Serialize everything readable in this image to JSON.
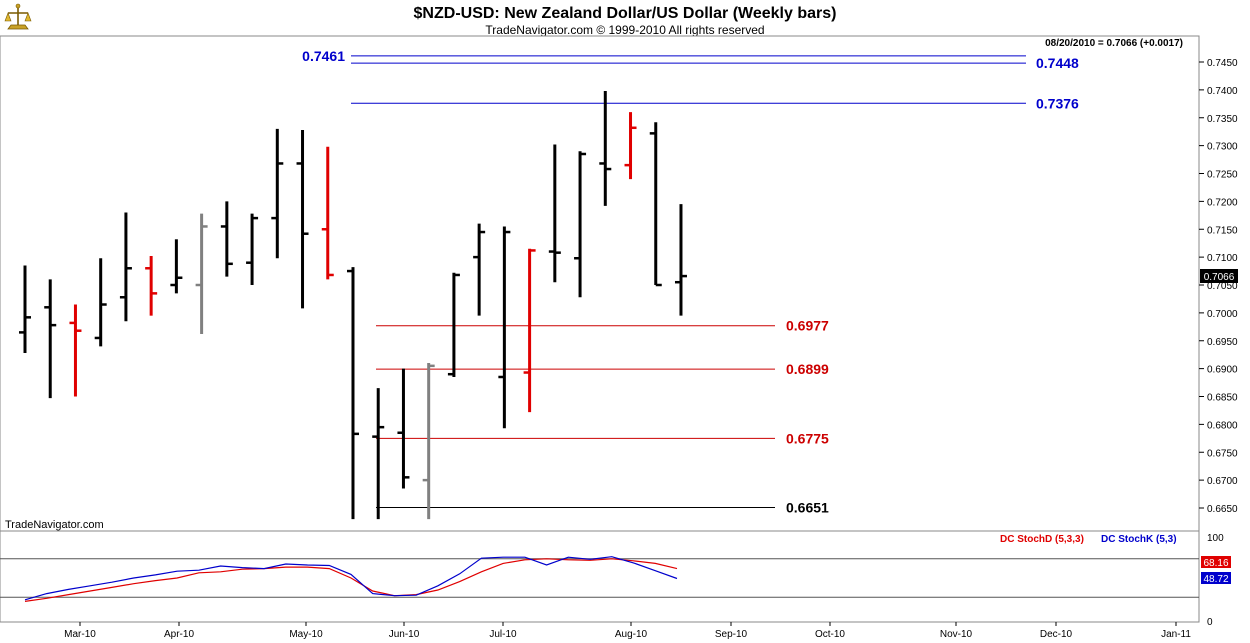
{
  "header": {
    "title": "$NZD-USD:  New Zealand Dollar/US Dollar  (Weekly bars)",
    "copyright": "TradeNavigator.com © 1999-2010 All rights reserved",
    "last_quote": "08/20/2010 = 0.7066 (+0.0017)",
    "watermark": "TradeNavigator.com"
  },
  "colors": {
    "up_bar": "#000000",
    "down_bar": "#e00000",
    "neutral_bar": "#808080",
    "resistance": "#0000cc",
    "support": "#cc0000",
    "stoch_d": "#e00000",
    "stoch_k": "#0000cc"
  },
  "chart_data": [
    {
      "type": "ohlc",
      "title": "$NZD-USD:  New Zealand Dollar/US Dollar  (Weekly bars)",
      "x_ticks": [
        "Mar-10",
        "Apr-10",
        "May-10",
        "Jun-10",
        "Jul-10",
        "Aug-10",
        "Sep-10",
        "Oct-10",
        "Nov-10",
        "Dec-10",
        "Jan-11"
      ],
      "y_ticks": [
        "0.7450",
        "0.7400",
        "0.7350",
        "0.7300",
        "0.7250",
        "0.7200",
        "0.7150",
        "0.7100",
        "0.7050",
        "0.7000",
        "0.6950",
        "0.6900",
        "0.6850",
        "0.6800",
        "0.6750",
        "0.6700",
        "0.6650"
      ],
      "ylim": [
        0.6628,
        0.7495
      ],
      "grid": false,
      "last_value": "0.7066",
      "bars": [
        {
          "o": 0.6965,
          "h": 0.7085,
          "l": 0.6928,
          "c": 0.6992,
          "color": "up"
        },
        {
          "o": 0.701,
          "h": 0.706,
          "l": 0.6847,
          "c": 0.6978,
          "color": "up"
        },
        {
          "o": 0.6982,
          "h": 0.7015,
          "l": 0.685,
          "c": 0.6968,
          "color": "down"
        },
        {
          "o": 0.6955,
          "h": 0.7098,
          "l": 0.694,
          "c": 0.7015,
          "color": "up"
        },
        {
          "o": 0.7028,
          "h": 0.718,
          "l": 0.6985,
          "c": 0.708,
          "color": "up"
        },
        {
          "o": 0.708,
          "h": 0.7102,
          "l": 0.6995,
          "c": 0.7035,
          "color": "down"
        },
        {
          "o": 0.705,
          "h": 0.7132,
          "l": 0.7035,
          "c": 0.7063,
          "color": "up"
        },
        {
          "o": 0.705,
          "h": 0.7178,
          "l": 0.6962,
          "c": 0.7155,
          "color": "neutral"
        },
        {
          "o": 0.7155,
          "h": 0.72,
          "l": 0.7065,
          "c": 0.7088,
          "color": "up"
        },
        {
          "o": 0.709,
          "h": 0.7178,
          "l": 0.705,
          "c": 0.717,
          "color": "up"
        },
        {
          "o": 0.717,
          "h": 0.733,
          "l": 0.7098,
          "c": 0.7268,
          "color": "up"
        },
        {
          "o": 0.7268,
          "h": 0.7328,
          "l": 0.7008,
          "c": 0.7142,
          "color": "up"
        },
        {
          "o": 0.715,
          "h": 0.7298,
          "l": 0.706,
          "c": 0.7068,
          "color": "down"
        },
        {
          "o": 0.7075,
          "h": 0.7082,
          "l": 0.663,
          "c": 0.6783,
          "color": "up"
        },
        {
          "o": 0.6778,
          "h": 0.6865,
          "l": 0.663,
          "c": 0.6795,
          "color": "up"
        },
        {
          "o": 0.6785,
          "h": 0.69,
          "l": 0.6685,
          "c": 0.6705,
          "color": "up"
        },
        {
          "o": 0.67,
          "h": 0.691,
          "l": 0.663,
          "c": 0.6905,
          "color": "neutral"
        },
        {
          "o": 0.689,
          "h": 0.7072,
          "l": 0.6885,
          "c": 0.7068,
          "color": "up"
        },
        {
          "o": 0.71,
          "h": 0.716,
          "l": 0.6995,
          "c": 0.7145,
          "color": "up"
        },
        {
          "o": 0.6885,
          "h": 0.7155,
          "l": 0.6793,
          "c": 0.7145,
          "color": "up"
        },
        {
          "o": 0.6893,
          "h": 0.7115,
          "l": 0.6822,
          "c": 0.7112,
          "color": "down"
        },
        {
          "o": 0.711,
          "h": 0.7302,
          "l": 0.7055,
          "c": 0.7108,
          "color": "up"
        },
        {
          "o": 0.7098,
          "h": 0.729,
          "l": 0.7028,
          "c": 0.7285,
          "color": "up"
        },
        {
          "o": 0.7268,
          "h": 0.7398,
          "l": 0.7192,
          "c": 0.7258,
          "color": "up"
        },
        {
          "o": 0.7265,
          "h": 0.736,
          "l": 0.724,
          "c": 0.7332,
          "color": "down"
        },
        {
          "o": 0.7322,
          "h": 0.7342,
          "l": 0.705,
          "c": 0.705,
          "color": "up"
        },
        {
          "o": 0.7055,
          "h": 0.7195,
          "l": 0.6995,
          "c": 0.7066,
          "color": "up"
        }
      ],
      "levels": [
        {
          "label": "0.7461",
          "value": 0.7461,
          "color": "resistance",
          "label_side": "left"
        },
        {
          "label": "0.7448",
          "value": 0.7448,
          "color": "resistance",
          "label_side": "right"
        },
        {
          "label": "0.7376",
          "value": 0.7376,
          "color": "resistance",
          "label_side": "right"
        },
        {
          "label": "0.6977",
          "value": 0.6977,
          "color": "support",
          "label_side": "right"
        },
        {
          "label": "0.6899",
          "value": 0.6899,
          "color": "support",
          "label_side": "right"
        },
        {
          "label": "0.6775",
          "value": 0.6775,
          "color": "support",
          "label_side": "right"
        },
        {
          "label": "0.6651",
          "value": 0.6651,
          "color": "black",
          "label_side": "right"
        }
      ]
    },
    {
      "type": "line",
      "title": "",
      "ylim": [
        0,
        100
      ],
      "y_ticks": [
        "100",
        "0"
      ],
      "reference_lines": [
        87,
        13
      ],
      "legend": [
        {
          "name": "DC StochD (5,3,3)",
          "color": "stoch_d"
        },
        {
          "name": "DC StochK (5,3)",
          "color": "stoch_k"
        }
      ],
      "last_values": {
        "stoch_d": "68.16",
        "stoch_k": "48.72"
      },
      "series": [
        {
          "name": "DC StochD (5,3,3)",
          "values": [
            5,
            11,
            18,
            25,
            32,
            39,
            45,
            50,
            60,
            62,
            67,
            68,
            71,
            71,
            68,
            50,
            25,
            16,
            18,
            27,
            43,
            62,
            78,
            85,
            87,
            85,
            84,
            87,
            83,
            78,
            68
          ]
        },
        {
          "name": "DC StochK (5,3)",
          "values": [
            8,
            20,
            28,
            35,
            42,
            50,
            56,
            63,
            65,
            73,
            70,
            68,
            77,
            75,
            74,
            57,
            20,
            16,
            17,
            35,
            58,
            88,
            90,
            90,
            75,
            90,
            86,
            91,
            79,
            64,
            49
          ]
        }
      ]
    }
  ]
}
